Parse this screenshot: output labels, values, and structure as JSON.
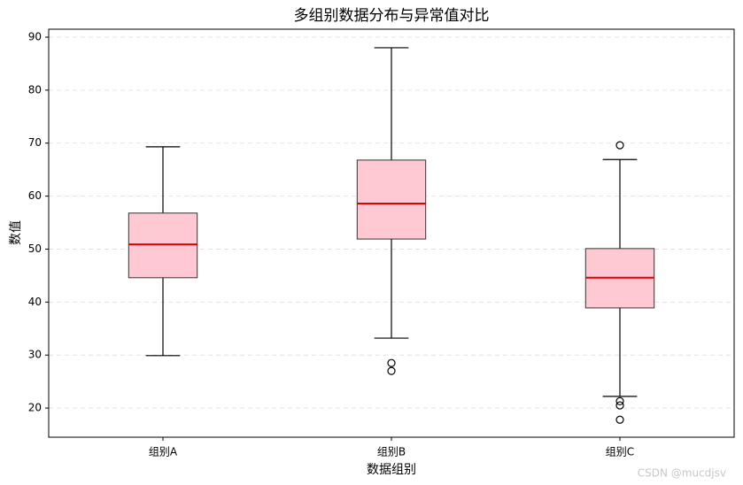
{
  "chart_data": {
    "type": "box",
    "title": "多组别数据分布与异常值对比",
    "xlabel": "数据组别",
    "ylabel": "数值",
    "categories": [
      "组别A",
      "组别B",
      "组别C"
    ],
    "boxes": [
      {
        "whisker_low": 29.9,
        "q1": 44.6,
        "median": 50.9,
        "q3": 56.8,
        "whisker_high": 69.3,
        "outliers": []
      },
      {
        "whisker_low": 33.2,
        "q1": 51.9,
        "median": 58.6,
        "q3": 66.8,
        "whisker_high": 88.0,
        "outliers": [
          28.5,
          27.0
        ]
      },
      {
        "whisker_low": 22.2,
        "q1": 38.9,
        "median": 44.6,
        "q3": 50.1,
        "whisker_high": 66.9,
        "outliers": [
          69.6,
          21.3,
          20.5,
          17.8
        ]
      }
    ],
    "box_color": "#ffc0cb",
    "median_color": "#e00000",
    "ylim": [
      14.5,
      91.5
    ],
    "yticks": [
      20,
      30,
      40,
      50,
      60,
      70,
      80,
      90
    ],
    "grid": true,
    "watermark": "CSDN @mucdjsv"
  }
}
